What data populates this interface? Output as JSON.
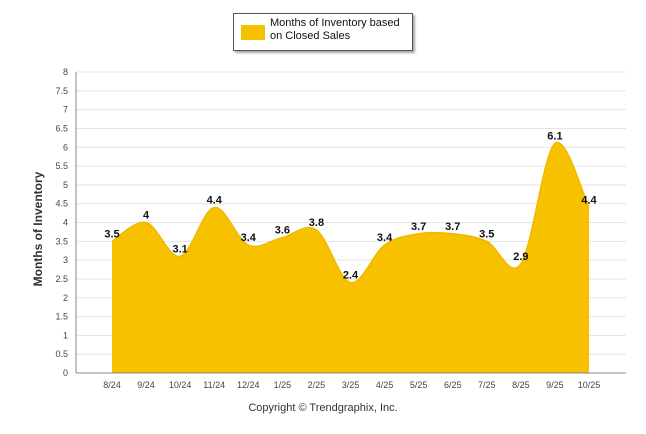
{
  "chart_data": {
    "type": "area",
    "title": "",
    "xlabel": "",
    "ylabel": "Months of Inventory",
    "ylim": [
      0,
      8
    ],
    "ytick_step": 0.5,
    "grid": true,
    "legend_position": "top-center",
    "categories": [
      "8/24",
      "9/24",
      "10/24",
      "11/24",
      "12/24",
      "1/25",
      "2/25",
      "3/25",
      "4/25",
      "5/25",
      "6/25",
      "7/25",
      "8/25",
      "9/25",
      "10/25"
    ],
    "series": [
      {
        "name": "Months of Inventory based on Closed Sales",
        "color": "#f7c100",
        "values": [
          3.5,
          4,
          3.1,
          4.4,
          3.4,
          3.6,
          3.8,
          2.4,
          3.4,
          3.7,
          3.7,
          3.5,
          2.9,
          6.1,
          4.4
        ],
        "labels": [
          "3.5",
          "4",
          "3.1",
          "4.4",
          "3.4",
          "3.6",
          "3.8",
          "2.4",
          "3.4",
          "3.7",
          "3.7",
          "3.5",
          "2.9",
          "6.1",
          "4.4"
        ]
      }
    ],
    "ytick_labels": [
      "0",
      "0.5",
      "1",
      "1.5",
      "2",
      "2.5",
      "3",
      "3.5",
      "4",
      "4.5",
      "5",
      "5.5",
      "6",
      "6.5",
      "7",
      "7.5",
      "8"
    ]
  },
  "legend": {
    "label": "Months of Inventory based on Closed Sales"
  },
  "footer": {
    "copyright": "Copyright © Trendgraphix, Inc."
  }
}
